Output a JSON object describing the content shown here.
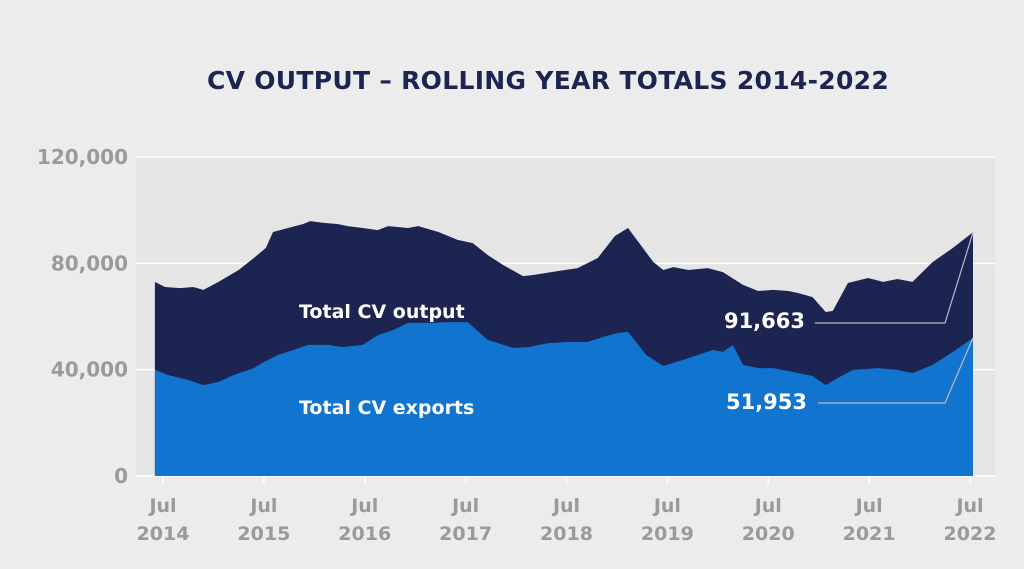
{
  "chart_data": {
    "type": "area",
    "title": "CV OUTPUT – ROLLING YEAR TOTALS 2014-2022",
    "xlabel": "",
    "ylabel": "",
    "ylim": [
      0,
      120000
    ],
    "yticks": [
      0,
      40000,
      80000,
      120000
    ],
    "ytick_labels": [
      "0",
      "40,000",
      "80,000",
      "120,000"
    ],
    "xlim_months": [
      "2014-06",
      "2022-07"
    ],
    "xticks": [
      {
        "month": "2014-07",
        "line1": "Jul",
        "line2": "2014"
      },
      {
        "month": "2015-07",
        "line1": "Jul",
        "line2": "2015"
      },
      {
        "month": "2016-07",
        "line1": "Jul",
        "line2": "2016"
      },
      {
        "month": "2017-07",
        "line1": "Jul",
        "line2": "2017"
      },
      {
        "month": "2018-07",
        "line1": "Jul",
        "line2": "2018"
      },
      {
        "month": "2019-07",
        "line1": "Jul",
        "line2": "2019"
      },
      {
        "month": "2020-07",
        "line1": "Jul",
        "line2": "2020"
      },
      {
        "month": "2021-07",
        "line1": "Jul",
        "line2": "2021"
      },
      {
        "month": "2022-07",
        "line1": "Jul",
        "line2": "2022"
      }
    ],
    "grid": true,
    "series": [
      {
        "name": "Total CV output",
        "color": "#1c2452",
        "label": "Total CV output",
        "end_value": 91663,
        "end_label": "91,663",
        "points": [
          [
            2014.42,
            73000
          ],
          [
            2014.52,
            71100
          ],
          [
            2014.67,
            70700
          ],
          [
            2014.8,
            71100
          ],
          [
            2014.9,
            70000
          ],
          [
            2015.05,
            73000
          ],
          [
            2015.25,
            77500
          ],
          [
            2015.4,
            82000
          ],
          [
            2015.52,
            85800
          ],
          [
            2015.59,
            91800
          ],
          [
            2015.74,
            93300
          ],
          [
            2015.89,
            94800
          ],
          [
            2015.96,
            95900
          ],
          [
            2016.09,
            95200
          ],
          [
            2016.23,
            94800
          ],
          [
            2016.33,
            94000
          ],
          [
            2016.48,
            93300
          ],
          [
            2016.63,
            92500
          ],
          [
            2016.73,
            94000
          ],
          [
            2016.93,
            93300
          ],
          [
            2017.03,
            94000
          ],
          [
            2017.23,
            91800
          ],
          [
            2017.42,
            88800
          ],
          [
            2017.57,
            87600
          ],
          [
            2017.72,
            83100
          ],
          [
            2017.87,
            79400
          ],
          [
            2018.07,
            75200
          ],
          [
            2018.17,
            75600
          ],
          [
            2018.42,
            77100
          ],
          [
            2018.61,
            78200
          ],
          [
            2018.81,
            82000
          ],
          [
            2018.98,
            90300
          ],
          [
            2019.11,
            93300
          ],
          [
            2019.36,
            80500
          ],
          [
            2019.46,
            77500
          ],
          [
            2019.56,
            78600
          ],
          [
            2019.71,
            77500
          ],
          [
            2019.9,
            78200
          ],
          [
            2020.05,
            76700
          ],
          [
            2020.25,
            71900
          ],
          [
            2020.4,
            69600
          ],
          [
            2020.55,
            70000
          ],
          [
            2020.7,
            69600
          ],
          [
            2020.8,
            68800
          ],
          [
            2020.94,
            67300
          ],
          [
            2021.07,
            61700
          ],
          [
            2021.14,
            62100
          ],
          [
            2021.29,
            72600
          ],
          [
            2021.49,
            74500
          ],
          [
            2021.64,
            73000
          ],
          [
            2021.78,
            74100
          ],
          [
            2021.93,
            73000
          ],
          [
            2022.13,
            80500
          ],
          [
            2022.33,
            85800
          ],
          [
            2022.53,
            91663
          ]
        ]
      },
      {
        "name": "Total CV exports",
        "color": "#1174cf",
        "label": "Total CV exports",
        "end_value": 51953,
        "end_label": "51,953",
        "points": [
          [
            2014.42,
            39900
          ],
          [
            2014.55,
            38000
          ],
          [
            2014.75,
            36100
          ],
          [
            2014.9,
            34200
          ],
          [
            2015.05,
            35400
          ],
          [
            2015.2,
            38000
          ],
          [
            2015.4,
            40600
          ],
          [
            2015.5,
            42900
          ],
          [
            2015.64,
            45500
          ],
          [
            2015.79,
            47400
          ],
          [
            2015.94,
            49300
          ],
          [
            2016.14,
            49300
          ],
          [
            2016.28,
            48500
          ],
          [
            2016.48,
            49300
          ],
          [
            2016.63,
            53000
          ],
          [
            2016.78,
            54900
          ],
          [
            2016.93,
            57600
          ],
          [
            2017.13,
            57600
          ],
          [
            2017.33,
            57900
          ],
          [
            2017.52,
            57900
          ],
          [
            2017.72,
            51200
          ],
          [
            2017.97,
            48200
          ],
          [
            2018.12,
            48500
          ],
          [
            2018.32,
            50000
          ],
          [
            2018.51,
            50400
          ],
          [
            2018.71,
            50400
          ],
          [
            2018.86,
            52300
          ],
          [
            2019.01,
            53800
          ],
          [
            2019.11,
            54200
          ],
          [
            2019.29,
            45500
          ],
          [
            2019.46,
            41400
          ],
          [
            2019.65,
            43600
          ],
          [
            2019.8,
            45500
          ],
          [
            2019.95,
            47400
          ],
          [
            2020.05,
            46700
          ],
          [
            2020.15,
            49300
          ],
          [
            2020.25,
            41800
          ],
          [
            2020.4,
            40600
          ],
          [
            2020.55,
            40600
          ],
          [
            2020.75,
            39100
          ],
          [
            2020.94,
            37600
          ],
          [
            2021.07,
            34200
          ],
          [
            2021.19,
            36900
          ],
          [
            2021.34,
            39900
          ],
          [
            2021.59,
            40600
          ],
          [
            2021.78,
            39900
          ],
          [
            2021.93,
            38700
          ],
          [
            2022.13,
            41800
          ],
          [
            2022.33,
            46700
          ],
          [
            2022.53,
            51953
          ]
        ]
      }
    ]
  }
}
